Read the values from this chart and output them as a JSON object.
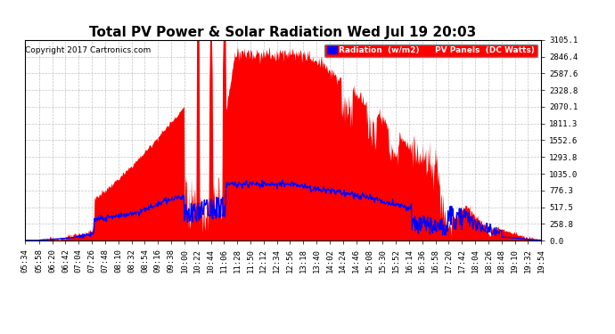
{
  "title": "Total PV Power & Solar Radiation Wed Jul 19 20:03",
  "copyright": "Copyright 2017 Cartronics.com",
  "legend_labels": [
    "Radiation  (w/m2)",
    "PV Panels  (DC Watts)"
  ],
  "legend_colors": [
    "#0000ff",
    "#ff0000"
  ],
  "y_ticks": [
    0.0,
    258.8,
    517.5,
    776.3,
    1035.0,
    1293.8,
    1552.6,
    1811.3,
    2070.1,
    2328.8,
    2587.6,
    2846.4,
    3105.1
  ],
  "ylim": [
    0,
    3105.1
  ],
  "bg_color": "#ffffff",
  "plot_bg_color": "#ffffff",
  "grid_color": "#aaaaaa",
  "pv_color": "#ff0000",
  "radiation_color": "#0000ff",
  "title_fontsize": 11,
  "axis_fontsize": 6.5,
  "copyright_fontsize": 6.5,
  "tick_labels": [
    "05:34",
    "05:58",
    "06:20",
    "06:42",
    "07:04",
    "07:26",
    "07:48",
    "08:10",
    "08:32",
    "08:54",
    "09:16",
    "09:38",
    "10:00",
    "10:22",
    "10:44",
    "11:06",
    "11:28",
    "11:50",
    "12:12",
    "12:34",
    "12:56",
    "13:18",
    "13:40",
    "14:02",
    "14:24",
    "14:46",
    "15:08",
    "15:30",
    "15:52",
    "16:14",
    "16:36",
    "16:58",
    "17:20",
    "17:42",
    "18:04",
    "18:26",
    "18:48",
    "19:10",
    "19:32",
    "19:54"
  ]
}
